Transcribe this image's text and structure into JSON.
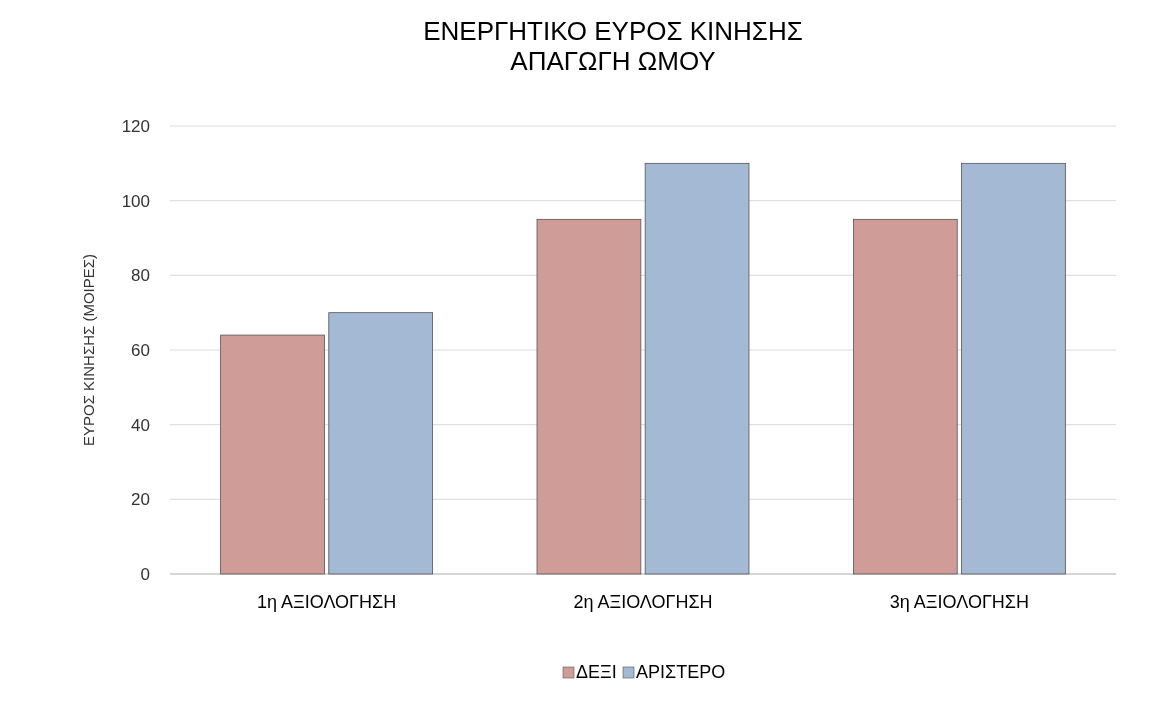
{
  "chart_data": {
    "type": "bar",
    "title": "ΕΝΕΡΓΗΤΙΚΟ ΕΥΡΟΣ ΚΙΝΗΣΗΣ\nΑΠΑΓΩΓΗ ΩΜΟΥ",
    "ylabel": "ΕΥΡΟΣ ΚΙΝΗΣΗΣ (ΜΟΙΡΕΣ)",
    "categories": [
      "1η ΑΞΙΟΛΟΓΗΣΗ",
      "2η ΑΞΙΟΛΟΓΗΣΗ",
      "3η ΑΞΙΟΛΟΓΗΣΗ"
    ],
    "series": [
      {
        "name": "ΔΕΞΙ",
        "color": "#d09c98",
        "values": [
          64,
          95,
          95
        ]
      },
      {
        "name": "ΑΡΙΣΤΕΡΟ",
        "color": "#a3b9d4",
        "values": [
          70,
          110,
          110
        ]
      }
    ],
    "ylim": [
      0,
      120
    ],
    "yticks": [
      0,
      20,
      40,
      60,
      80,
      100,
      120
    ],
    "grid": "y",
    "legend": "bottom"
  }
}
